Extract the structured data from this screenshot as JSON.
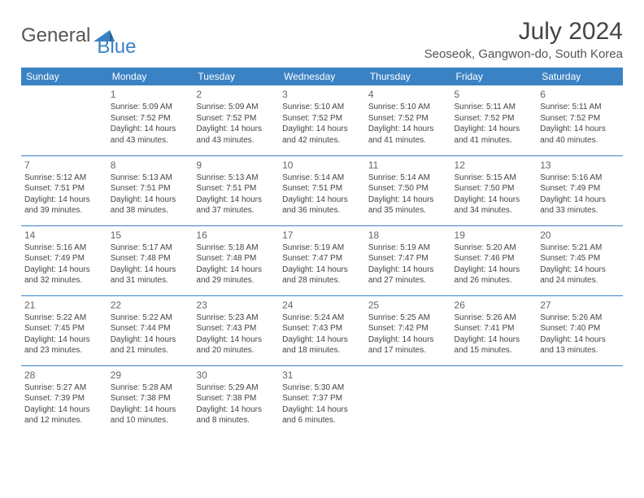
{
  "brand": {
    "part1": "General",
    "part2": "Blue"
  },
  "title": "July 2024",
  "location": "Seoseok, Gangwon-do, South Korea",
  "colors": {
    "brand_blue": "#3b82c4",
    "text": "#444444",
    "header_bg": "#3b82c4",
    "header_text": "#ffffff",
    "cell_border": "#3b82c4",
    "background": "#ffffff"
  },
  "day_headers": [
    "Sunday",
    "Monday",
    "Tuesday",
    "Wednesday",
    "Thursday",
    "Friday",
    "Saturday"
  ],
  "weeks": [
    [
      null,
      {
        "n": "1",
        "sunrise": "5:09 AM",
        "sunset": "7:52 PM",
        "daylight": "14 hours and 43 minutes."
      },
      {
        "n": "2",
        "sunrise": "5:09 AM",
        "sunset": "7:52 PM",
        "daylight": "14 hours and 43 minutes."
      },
      {
        "n": "3",
        "sunrise": "5:10 AM",
        "sunset": "7:52 PM",
        "daylight": "14 hours and 42 minutes."
      },
      {
        "n": "4",
        "sunrise": "5:10 AM",
        "sunset": "7:52 PM",
        "daylight": "14 hours and 41 minutes."
      },
      {
        "n": "5",
        "sunrise": "5:11 AM",
        "sunset": "7:52 PM",
        "daylight": "14 hours and 41 minutes."
      },
      {
        "n": "6",
        "sunrise": "5:11 AM",
        "sunset": "7:52 PM",
        "daylight": "14 hours and 40 minutes."
      }
    ],
    [
      {
        "n": "7",
        "sunrise": "5:12 AM",
        "sunset": "7:51 PM",
        "daylight": "14 hours and 39 minutes."
      },
      {
        "n": "8",
        "sunrise": "5:13 AM",
        "sunset": "7:51 PM",
        "daylight": "14 hours and 38 minutes."
      },
      {
        "n": "9",
        "sunrise": "5:13 AM",
        "sunset": "7:51 PM",
        "daylight": "14 hours and 37 minutes."
      },
      {
        "n": "10",
        "sunrise": "5:14 AM",
        "sunset": "7:51 PM",
        "daylight": "14 hours and 36 minutes."
      },
      {
        "n": "11",
        "sunrise": "5:14 AM",
        "sunset": "7:50 PM",
        "daylight": "14 hours and 35 minutes."
      },
      {
        "n": "12",
        "sunrise": "5:15 AM",
        "sunset": "7:50 PM",
        "daylight": "14 hours and 34 minutes."
      },
      {
        "n": "13",
        "sunrise": "5:16 AM",
        "sunset": "7:49 PM",
        "daylight": "14 hours and 33 minutes."
      }
    ],
    [
      {
        "n": "14",
        "sunrise": "5:16 AM",
        "sunset": "7:49 PM",
        "daylight": "14 hours and 32 minutes."
      },
      {
        "n": "15",
        "sunrise": "5:17 AM",
        "sunset": "7:48 PM",
        "daylight": "14 hours and 31 minutes."
      },
      {
        "n": "16",
        "sunrise": "5:18 AM",
        "sunset": "7:48 PM",
        "daylight": "14 hours and 29 minutes."
      },
      {
        "n": "17",
        "sunrise": "5:19 AM",
        "sunset": "7:47 PM",
        "daylight": "14 hours and 28 minutes."
      },
      {
        "n": "18",
        "sunrise": "5:19 AM",
        "sunset": "7:47 PM",
        "daylight": "14 hours and 27 minutes."
      },
      {
        "n": "19",
        "sunrise": "5:20 AM",
        "sunset": "7:46 PM",
        "daylight": "14 hours and 26 minutes."
      },
      {
        "n": "20",
        "sunrise": "5:21 AM",
        "sunset": "7:45 PM",
        "daylight": "14 hours and 24 minutes."
      }
    ],
    [
      {
        "n": "21",
        "sunrise": "5:22 AM",
        "sunset": "7:45 PM",
        "daylight": "14 hours and 23 minutes."
      },
      {
        "n": "22",
        "sunrise": "5:22 AM",
        "sunset": "7:44 PM",
        "daylight": "14 hours and 21 minutes."
      },
      {
        "n": "23",
        "sunrise": "5:23 AM",
        "sunset": "7:43 PM",
        "daylight": "14 hours and 20 minutes."
      },
      {
        "n": "24",
        "sunrise": "5:24 AM",
        "sunset": "7:43 PM",
        "daylight": "14 hours and 18 minutes."
      },
      {
        "n": "25",
        "sunrise": "5:25 AM",
        "sunset": "7:42 PM",
        "daylight": "14 hours and 17 minutes."
      },
      {
        "n": "26",
        "sunrise": "5:26 AM",
        "sunset": "7:41 PM",
        "daylight": "14 hours and 15 minutes."
      },
      {
        "n": "27",
        "sunrise": "5:26 AM",
        "sunset": "7:40 PM",
        "daylight": "14 hours and 13 minutes."
      }
    ],
    [
      {
        "n": "28",
        "sunrise": "5:27 AM",
        "sunset": "7:39 PM",
        "daylight": "14 hours and 12 minutes."
      },
      {
        "n": "29",
        "sunrise": "5:28 AM",
        "sunset": "7:38 PM",
        "daylight": "14 hours and 10 minutes."
      },
      {
        "n": "30",
        "sunrise": "5:29 AM",
        "sunset": "7:38 PM",
        "daylight": "14 hours and 8 minutes."
      },
      {
        "n": "31",
        "sunrise": "5:30 AM",
        "sunset": "7:37 PM",
        "daylight": "14 hours and 6 minutes."
      },
      null,
      null,
      null
    ]
  ],
  "labels": {
    "sunrise": "Sunrise:",
    "sunset": "Sunset:",
    "daylight": "Daylight:"
  }
}
